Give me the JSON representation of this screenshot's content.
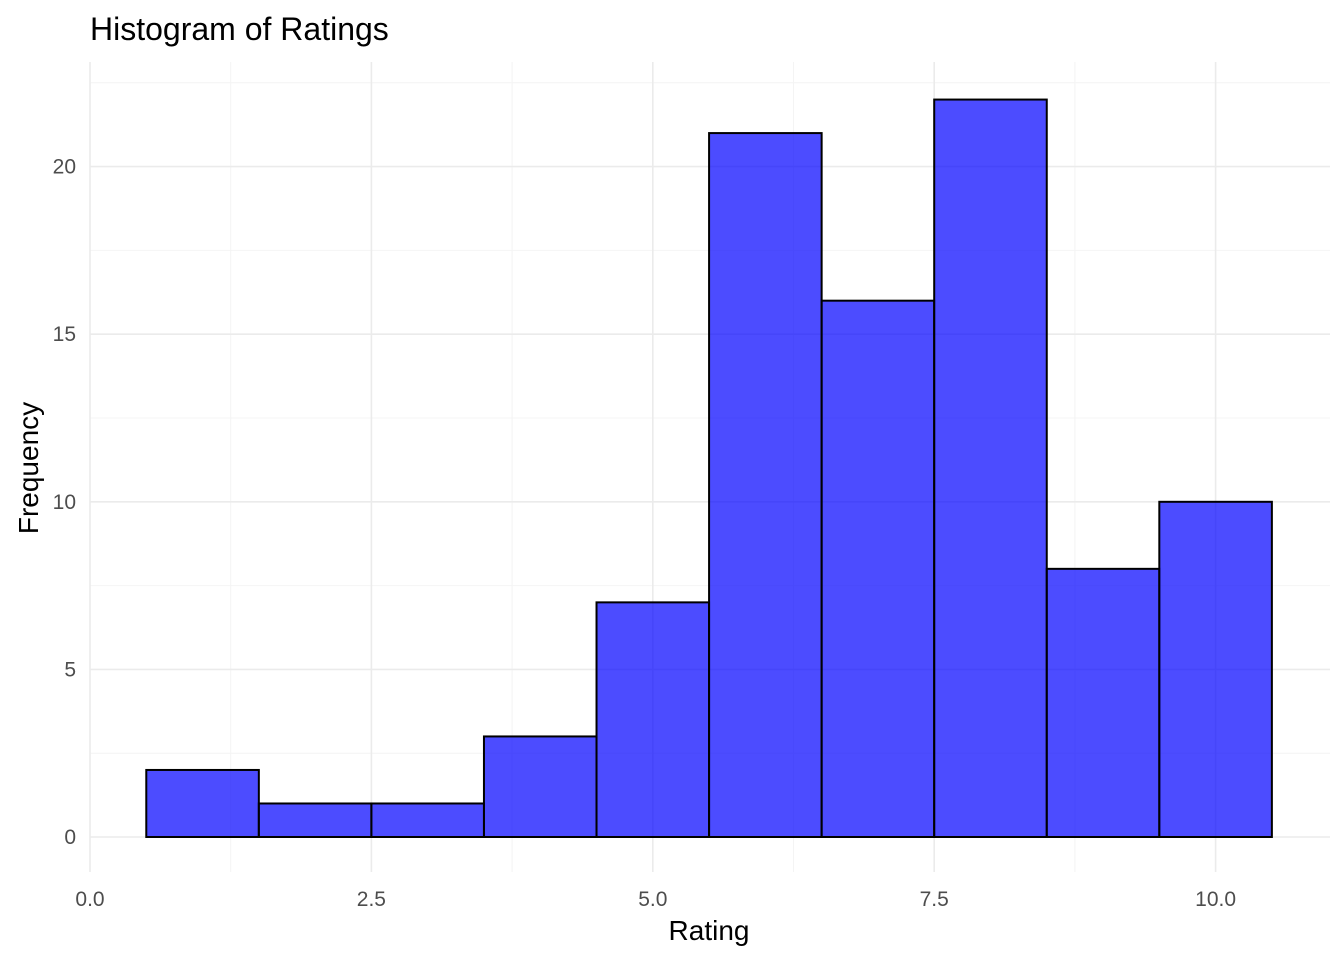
{
  "chart_data": {
    "type": "bar",
    "subtype": "histogram",
    "title": "Histogram of Ratings",
    "xlabel": "Rating",
    "ylabel": "Frequency",
    "xlim": [
      0,
      11
    ],
    "ylim": [
      0,
      22
    ],
    "x_ticks": [
      0,
      2.5,
      5,
      7.5,
      10
    ],
    "x_tick_labels": [
      "0.0",
      "2.5",
      "5.0",
      "7.5",
      "10.0"
    ],
    "y_ticks": [
      0,
      5,
      10,
      15,
      20
    ],
    "y_tick_labels": [
      "0",
      "5",
      "10",
      "15",
      "20"
    ],
    "grid": true,
    "legend": "none",
    "bin_width": 1,
    "bins": [
      {
        "x_min": 0.5,
        "x_max": 1.5,
        "value": 2
      },
      {
        "x_min": 1.5,
        "x_max": 2.5,
        "value": 1
      },
      {
        "x_min": 2.5,
        "x_max": 3.5,
        "value": 1
      },
      {
        "x_min": 3.5,
        "x_max": 4.5,
        "value": 3
      },
      {
        "x_min": 4.5,
        "x_max": 5.5,
        "value": 7
      },
      {
        "x_min": 5.5,
        "x_max": 6.5,
        "value": 21
      },
      {
        "x_min": 6.5,
        "x_max": 7.5,
        "value": 16
      },
      {
        "x_min": 7.5,
        "x_max": 8.5,
        "value": 22
      },
      {
        "x_min": 8.5,
        "x_max": 9.5,
        "value": 8
      },
      {
        "x_min": 9.5,
        "x_max": 10.5,
        "value": 10
      }
    ],
    "colors": {
      "bar_fill": "#0000ff",
      "bar_fill_opacity": 0.7,
      "bar_stroke": "#000000",
      "grid": "#ebebeb",
      "tick_text": "#4d4d4d",
      "text": "#000000"
    }
  }
}
